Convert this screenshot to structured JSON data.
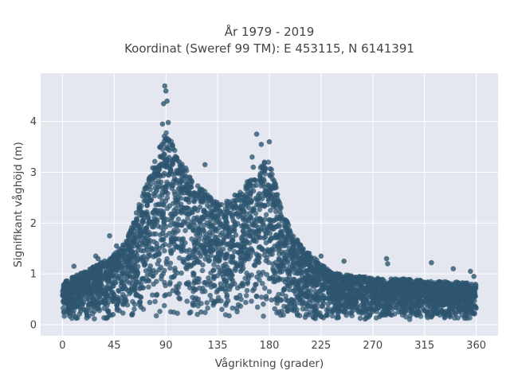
{
  "chart_data": {
    "type": "scatter",
    "title_line1": "År 1979 - 2019",
    "title_line2": "Koordinat (Sweref 99 TM): E 453115, N 6141391",
    "xlabel": "Vågriktning (grader)",
    "ylabel": "Signifikant våghöjd (m)",
    "xlim": [
      -19,
      379
    ],
    "ylim": [
      -0.22,
      4.95
    ],
    "xticks": [
      0,
      45,
      90,
      135,
      180,
      225,
      270,
      315,
      360
    ],
    "yticks": [
      0,
      1,
      2,
      3,
      4
    ],
    "grid": true,
    "legend": "none",
    "colors": {
      "plot_bg": "#e5e7f0",
      "grid": "#ffffff",
      "marker": "#2e5670"
    },
    "series": [
      {
        "envelope_upper": [
          [
            0,
            0.85
          ],
          [
            10,
            0.95
          ],
          [
            20,
            1.05
          ],
          [
            30,
            1.2
          ],
          [
            40,
            1.3
          ],
          [
            50,
            1.5
          ],
          [
            60,
            1.9
          ],
          [
            70,
            2.6
          ],
          [
            80,
            3.2
          ],
          [
            85,
            3.6
          ],
          [
            90,
            3.8
          ],
          [
            95,
            3.6
          ],
          [
            100,
            3.3
          ],
          [
            110,
            3.0
          ],
          [
            120,
            2.7
          ],
          [
            130,
            2.5
          ],
          [
            140,
            2.4
          ],
          [
            150,
            2.5
          ],
          [
            160,
            2.8
          ],
          [
            170,
            3.0
          ],
          [
            175,
            3.3
          ],
          [
            180,
            3.2
          ],
          [
            185,
            2.8
          ],
          [
            190,
            2.3
          ],
          [
            200,
            1.8
          ],
          [
            210,
            1.5
          ],
          [
            220,
            1.3
          ],
          [
            230,
            1.1
          ],
          [
            240,
            1.0
          ],
          [
            260,
            0.95
          ],
          [
            280,
            0.9
          ],
          [
            300,
            0.9
          ],
          [
            320,
            0.85
          ],
          [
            340,
            0.85
          ],
          [
            360,
            0.8
          ]
        ],
        "envelope_lower": [
          [
            0,
            0.1
          ],
          [
            360,
            0.1
          ]
        ],
        "outliers": [
          [
            89,
            4.7
          ],
          [
            90,
            4.6
          ],
          [
            88,
            4.35
          ],
          [
            91,
            4.4
          ],
          [
            87,
            3.95
          ],
          [
            92,
            3.98
          ],
          [
            169,
            3.75
          ],
          [
            173,
            3.55
          ],
          [
            180,
            3.6
          ],
          [
            165,
            3.3
          ],
          [
            166,
            3.1
          ],
          [
            176,
            3.05
          ],
          [
            124,
            3.15
          ],
          [
            150,
            2.55
          ],
          [
            185,
            2.5
          ],
          [
            41,
            1.75
          ],
          [
            47,
            1.55
          ],
          [
            225,
            1.35
          ],
          [
            245,
            1.25
          ],
          [
            282,
            1.3
          ],
          [
            283,
            1.2
          ],
          [
            321,
            1.22
          ],
          [
            340,
            1.1
          ],
          [
            355,
            1.05
          ],
          [
            358,
            0.95
          ],
          [
            10,
            1.15
          ],
          [
            29,
            1.35
          ],
          [
            31,
            1.3
          ],
          [
            56,
            1.6
          ],
          [
            66,
            1.85
          ]
        ]
      }
    ]
  }
}
